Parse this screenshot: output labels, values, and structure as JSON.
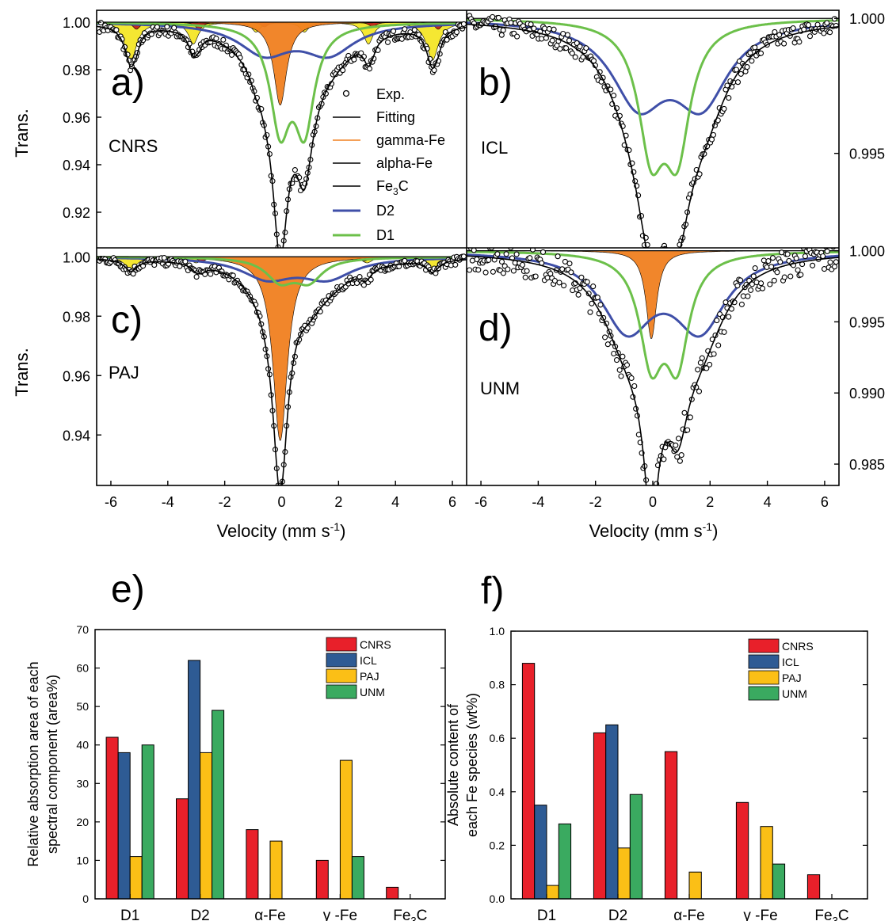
{
  "mossbauer": {
    "xlabel": "Velocity (mm s",
    "xlabel_sup": "-1",
    "xlabel_tail": ")",
    "ylabel": "Trans.",
    "x_ticks": [
      "-6",
      "-4",
      "-2",
      "0",
      "2",
      "4",
      "6"
    ],
    "xlim": [
      -6.5,
      6.5
    ],
    "legend": [
      {
        "label": "Exp.",
        "kind": "marker",
        "color": "#000000"
      },
      {
        "label": "Fitting",
        "kind": "line",
        "color": "#000000"
      },
      {
        "label": "gamma-Fe",
        "kind": "line",
        "color": "#f08020"
      },
      {
        "label": "alpha-Fe",
        "kind": "line",
        "color": "#000000"
      },
      {
        "label": "Fe",
        "sub": "3",
        "tail": "C",
        "kind": "line",
        "color": "#000000"
      },
      {
        "label": "D2",
        "kind": "line",
        "color": "#3f4fa8"
      },
      {
        "label": "D1",
        "kind": "line",
        "color": "#6cc04a"
      }
    ],
    "panels": [
      {
        "key": "a",
        "letter": "a)",
        "sample": "CNRS",
        "y_side": "left",
        "y_ticks": [
          "1.00",
          "0.98",
          "0.96",
          "0.94",
          "0.92"
        ],
        "ylim": [
          0.905,
          1.005
        ],
        "tick_values": [
          1.0,
          0.98,
          0.96,
          0.94,
          0.92
        ]
      },
      {
        "key": "b",
        "letter": "b)",
        "sample": "ICL",
        "y_side": "right",
        "y_ticks": [
          "1.000",
          "0.995"
        ],
        "ylim": [
          0.9915,
          1.0003
        ],
        "tick_values": [
          1.0,
          0.995
        ]
      },
      {
        "key": "c",
        "letter": "c)",
        "sample": "PAJ",
        "y_side": "left",
        "y_ticks": [
          "1.00",
          "0.98",
          "0.96",
          "0.94"
        ],
        "ylim": [
          0.923,
          1.003
        ],
        "tick_values": [
          1.0,
          0.98,
          0.96,
          0.94
        ]
      },
      {
        "key": "d",
        "letter": "d)",
        "sample": "UNM",
        "y_side": "right",
        "y_ticks": [
          "1.000",
          "0.995",
          "0.990",
          "0.985"
        ],
        "ylim": [
          0.9835,
          1.0002
        ],
        "tick_values": [
          1.0,
          0.995,
          0.99,
          0.985
        ]
      }
    ]
  },
  "chart_data": [
    {
      "type": "bar",
      "panel_label": "e)",
      "categories": [
        "D1",
        "D2",
        "α-Fe",
        "γ -Fe",
        "Fe3C"
      ],
      "ylabel_lines": [
        "Relative absorption area of each",
        "spectral component (area%)"
      ],
      "ylim": [
        0,
        70
      ],
      "y_ticks": [
        0,
        10,
        20,
        30,
        40,
        50,
        60,
        70
      ],
      "y_tick_labels": [
        "0",
        "10",
        "20",
        "30",
        "40",
        "50",
        "60",
        "70"
      ],
      "legend_position": "top-right",
      "series": [
        {
          "name": "CNRS",
          "color": "#e8202a",
          "values": [
            42,
            26,
            18,
            10,
            3
          ]
        },
        {
          "name": "ICL",
          "color": "#2e5b94",
          "values": [
            38,
            62,
            0,
            0,
            0
          ]
        },
        {
          "name": "PAJ",
          "color": "#fbbf16",
          "values": [
            11,
            38,
            15,
            36,
            0
          ]
        },
        {
          "name": "UNM",
          "color": "#3aaa60",
          "values": [
            40,
            49,
            0,
            11,
            0
          ]
        }
      ]
    },
    {
      "type": "bar",
      "panel_label": "f)",
      "categories": [
        "D1",
        "D2",
        "α-Fe",
        "γ -Fe",
        "Fe3C"
      ],
      "ylabel_lines": [
        "Absolute content of",
        "each Fe species (wt%)"
      ],
      "ylim": [
        0,
        1.0
      ],
      "y_ticks": [
        0,
        0.2,
        0.4,
        0.6,
        0.8,
        1.0
      ],
      "y_tick_labels": [
        "0.0",
        "0.2",
        "0.4",
        "0.6",
        "0.8",
        "1.0"
      ],
      "legend_position": "top-right",
      "series": [
        {
          "name": "CNRS",
          "color": "#e8202a",
          "values": [
            0.88,
            0.62,
            0.55,
            0.36,
            0.09
          ]
        },
        {
          "name": "ICL",
          "color": "#2e5b94",
          "values": [
            0.35,
            0.65,
            0,
            0,
            0
          ]
        },
        {
          "name": "PAJ",
          "color": "#fbbf16",
          "values": [
            0.05,
            0.19,
            0.1,
            0.27,
            0
          ]
        },
        {
          "name": "UNM",
          "color": "#3aaa60",
          "values": [
            0.28,
            0.39,
            0,
            0.13,
            0
          ]
        }
      ]
    }
  ]
}
